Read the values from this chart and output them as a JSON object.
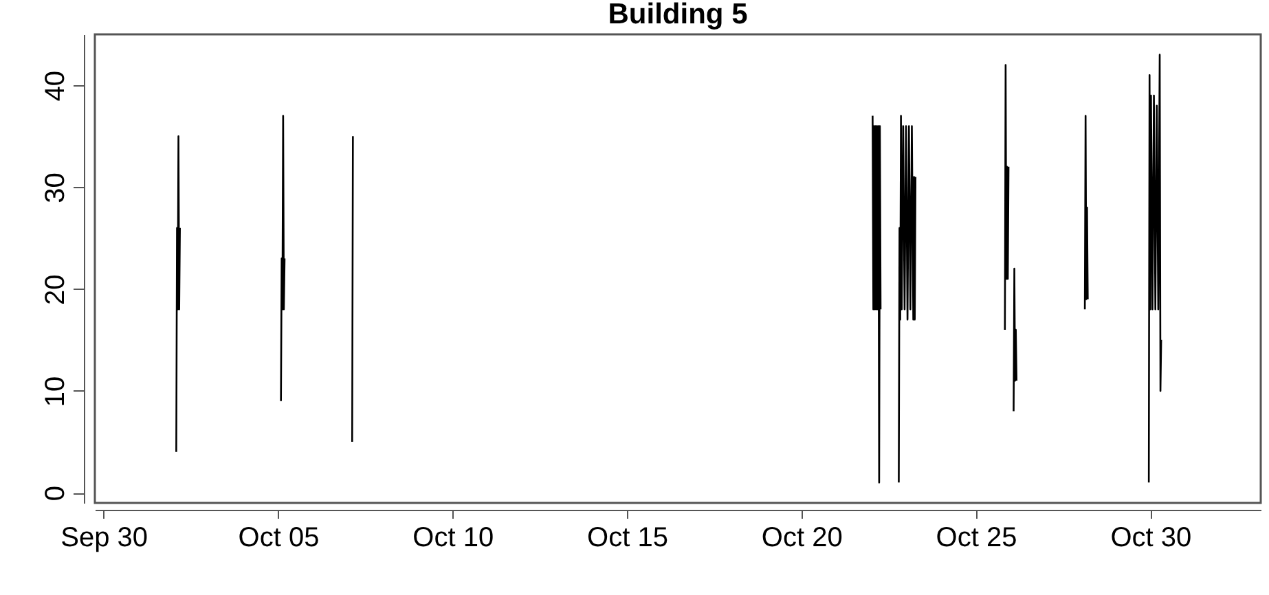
{
  "chart_data": {
    "type": "line",
    "title": "Building 5",
    "xlim": [
      "--09-29T18:00",
      "--11-02T04:00"
    ],
    "xticks": [
      {
        "value": "--09-30",
        "label": "Sep 30"
      },
      {
        "value": "--10-05",
        "label": "Oct 05"
      },
      {
        "value": "--10-10",
        "label": "Oct 10"
      },
      {
        "value": "--10-15",
        "label": "Oct 15"
      },
      {
        "value": "--10-20",
        "label": "Oct 20"
      },
      {
        "value": "--10-25",
        "label": "Oct 25"
      },
      {
        "value": "--10-30",
        "label": "Oct 30"
      }
    ],
    "ylim": [
      -1,
      45
    ],
    "yticks": [
      0,
      10,
      20,
      30,
      40
    ],
    "grid": false,
    "marker": "none",
    "line_style": "solid",
    "series": [
      {
        "color": "#000000",
        "x": [
          "--10-02T02:00",
          "--10-02T02:30",
          "--10-02T03:00",
          "--10-02T03:30",
          "--10-02T04:00",
          "--10-02T04:30",
          "--10-03T12:00",
          "--10-05T02:00",
          "--10-05T02:30",
          "--10-05T03:00",
          "--10-05T03:30",
          "--10-05T04:00",
          "--10-05T04:30",
          "--10-06T12:00",
          "--10-07T03:00",
          "--10-07T03:30",
          "--10-15T00:00",
          "--10-22T01:00",
          "--10-22T01:30",
          "--10-22T02:00",
          "--10-22T02:30",
          "--10-22T03:00",
          "--10-22T03:30",
          "--10-22T04:00",
          "--10-22T04:30",
          "--10-22T05:00",
          "--10-22T05:30",
          "--10-22T06:00",
          "--10-22T06:30",
          "--10-22T12:00",
          "--10-22T19:00",
          "--10-22T19:30",
          "--10-22T20:00",
          "--10-22T20:30",
          "--10-22T21:00",
          "--10-22T22:00",
          "--10-22T23:00",
          "--10-23T00:00",
          "--10-23T01:00",
          "--10-23T02:00",
          "--10-23T03:00",
          "--10-23T04:00",
          "--10-23T05:00",
          "--10-23T05:30",
          "--10-23T06:00",
          "--10-23T06:30",
          "--10-24T12:00",
          "--10-25T20:00",
          "--10-25T20:30",
          "--10-25T21:00",
          "--10-25T21:30",
          "--10-25T22:00",
          "--10-25T22:30",
          "--10-26T00:00",
          "--10-26T02:00",
          "--10-26T02:30",
          "--10-26T03:00",
          "--10-26T03:30",
          "--10-26T04:00",
          "--10-27T12:00",
          "--10-28T03:00",
          "--10-28T03:30",
          "--10-28T04:00",
          "--10-28T04:30",
          "--10-28T05:00",
          "--10-29T12:00",
          "--10-29T23:00",
          "--10-29T23:30",
          "--10-30T00:00",
          "--10-30T00:30",
          "--10-30T01:30",
          "--10-30T02:30",
          "--10-30T03:30",
          "--10-30T04:30",
          "--10-30T05:30",
          "--10-30T06:30",
          "--10-30T07:00",
          "--10-30T07:30"
        ],
        "values": [
          4,
          26,
          18,
          35,
          18,
          26,
          null,
          9,
          23,
          18,
          37,
          18,
          23,
          null,
          5,
          35,
          null,
          37,
          18,
          36,
          18,
          36,
          18,
          36,
          18,
          36,
          1,
          36,
          18,
          null,
          1,
          26,
          17,
          37,
          18,
          36,
          18,
          36,
          17,
          36,
          18,
          36,
          17,
          31,
          17,
          31,
          null,
          16,
          42,
          21,
          32,
          21,
          32,
          null,
          8,
          22,
          11,
          16,
          11,
          null,
          18,
          37,
          19,
          28,
          19,
          null,
          1,
          41,
          18,
          39,
          18,
          39,
          18,
          38,
          18,
          43,
          10,
          15
        ]
      }
    ]
  }
}
